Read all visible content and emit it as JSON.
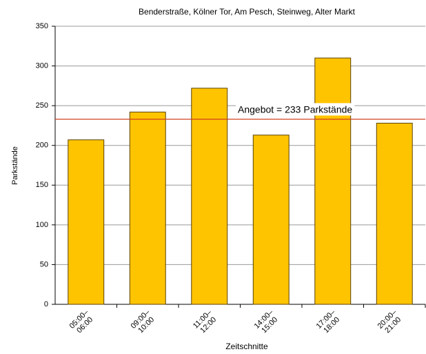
{
  "chart_data": {
    "type": "bar",
    "title": "Benderstraße, Kölner Tor, Am Pesch, Steinweg, Alter Markt",
    "x_label": "Zeitschnitte",
    "y_label": "Parkstände",
    "categories": [
      "05:00–\n06:00",
      "09:00–\n10:00",
      "11:00–\n12:00",
      "14:00–\n15:00",
      "17:00–\n18:00",
      "20:00–\n21:00"
    ],
    "values": [
      207,
      242,
      272,
      213,
      310,
      228
    ],
    "color": "#ffc400",
    "ylim": [
      0,
      350
    ],
    "yticks": [
      0,
      50,
      100,
      150,
      200,
      250,
      300,
      350
    ],
    "grid": true,
    "reference_line": {
      "value": 233,
      "label": "Angebot = 233 Parkstände",
      "color": "#d04020"
    }
  }
}
